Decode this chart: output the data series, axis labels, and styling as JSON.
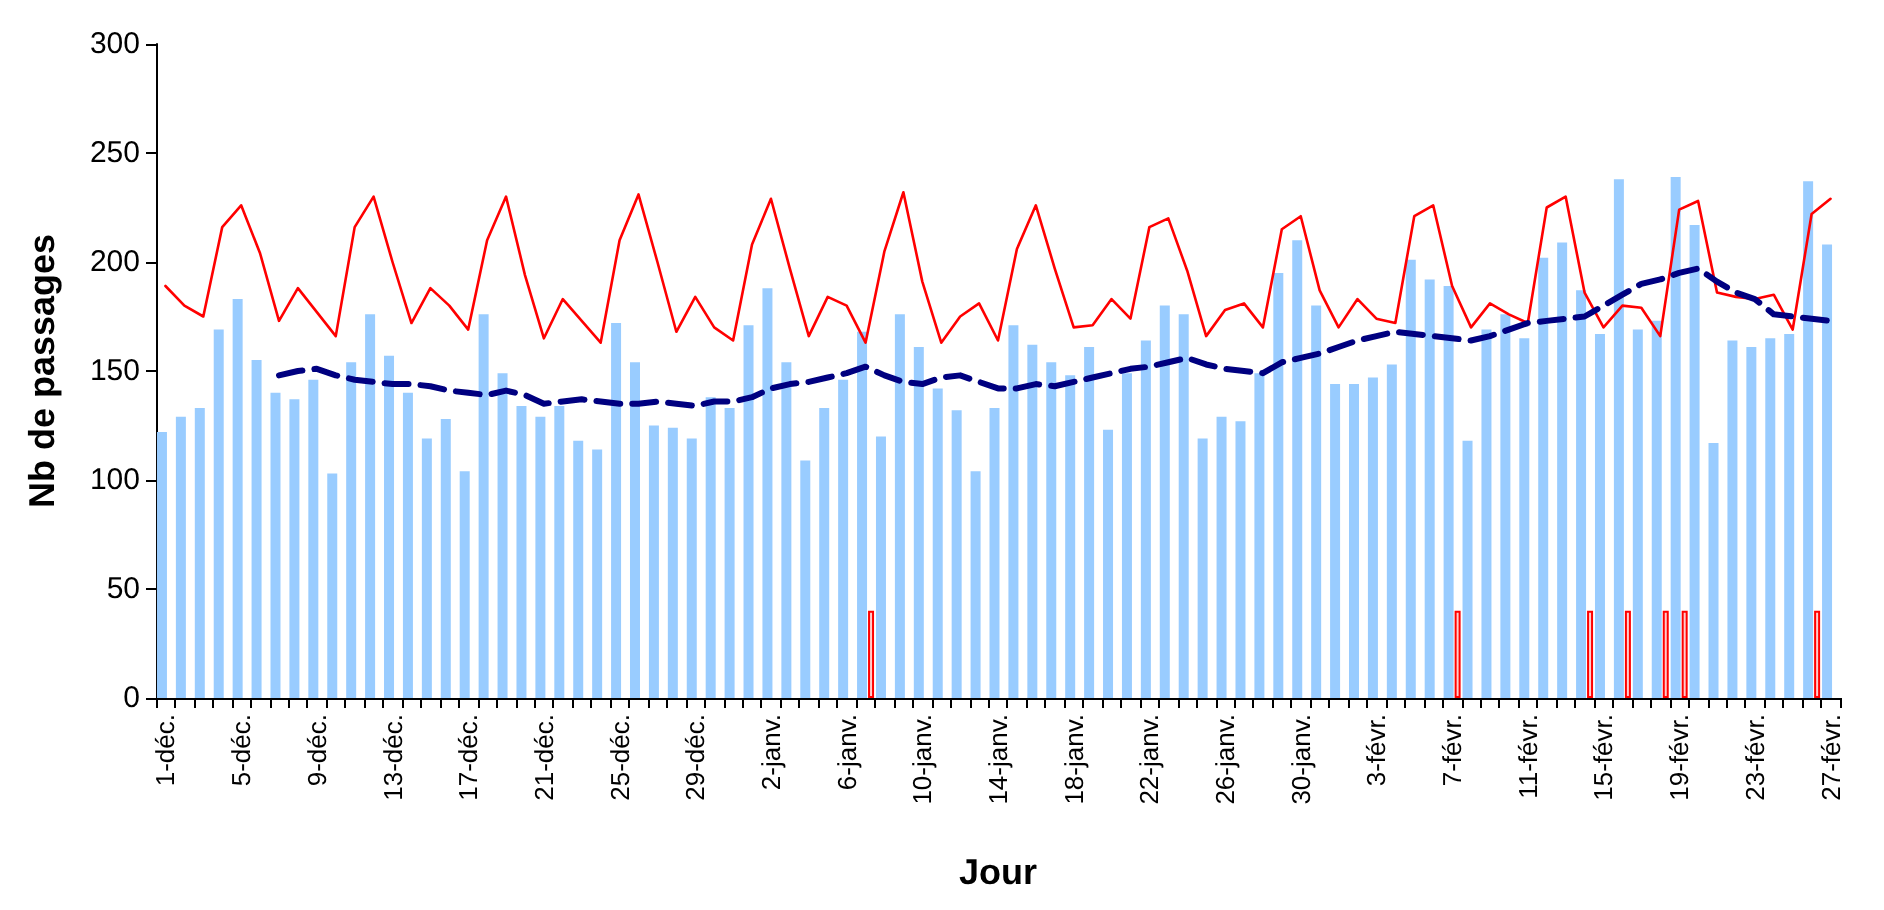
{
  "chart_data": {
    "type": "bar",
    "xlabel": "Jour",
    "ylabel": "Nb de passages",
    "categories": [
      "1-déc.",
      null,
      null,
      null,
      "5-déc.",
      null,
      null,
      null,
      "9-déc.",
      null,
      null,
      null,
      "13-déc.",
      null,
      null,
      null,
      "17-déc.",
      null,
      null,
      null,
      "21-déc.",
      null,
      null,
      null,
      "25-déc.",
      null,
      null,
      null,
      "29-déc.",
      null,
      null,
      null,
      "2-janv.",
      null,
      null,
      null,
      "6-janv.",
      null,
      null,
      null,
      "10-janv.",
      null,
      null,
      null,
      "14-janv.",
      null,
      null,
      null,
      "18-janv.",
      null,
      null,
      null,
      "22-janv.",
      null,
      null,
      null,
      "26-janv.",
      null,
      null,
      null,
      "30-janv.",
      null,
      null,
      null,
      "3-févr.",
      null,
      null,
      null,
      "7-févr.",
      null,
      null,
      null,
      "11-févr.",
      null,
      null,
      null,
      "15-févr.",
      null,
      null,
      null,
      "19-févr.",
      null,
      null,
      null,
      "23-févr.",
      null,
      null,
      null,
      "27-févr."
    ],
    "series": [
      {
        "color": "#99ccff",
        "values": [
          122,
          129,
          133,
          169,
          183,
          155,
          140,
          137,
          146,
          103,
          154,
          176,
          157,
          140,
          119,
          128,
          104,
          176,
          149,
          134,
          129,
          134,
          118,
          114,
          172,
          154,
          125,
          124,
          119,
          138,
          133,
          171,
          188,
          154,
          109,
          133,
          146,
          168,
          120,
          176,
          161,
          142,
          132,
          104,
          133,
          171,
          162,
          154,
          148,
          161,
          123,
          149,
          164,
          180,
          176,
          119,
          129,
          127,
          149,
          195,
          210,
          180,
          144,
          144,
          147,
          153,
          201,
          192,
          189,
          118,
          169,
          176,
          165,
          202,
          209,
          187,
          167,
          238,
          169,
          173,
          239,
          217,
          117,
          164,
          161,
          165,
          167,
          237,
          208
        ]
      },
      {
        "color": "#ff0000",
        "values": [
          null,
          null,
          null,
          null,
          null,
          null,
          null,
          null,
          null,
          null,
          null,
          null,
          null,
          null,
          null,
          null,
          null,
          null,
          null,
          null,
          null,
          null,
          null,
          null,
          null,
          null,
          null,
          null,
          null,
          null,
          null,
          null,
          null,
          null,
          null,
          null,
          null,
          40,
          null,
          null,
          null,
          null,
          null,
          null,
          null,
          null,
          null,
          null,
          null,
          null,
          null,
          null,
          null,
          null,
          null,
          null,
          null,
          null,
          null,
          null,
          null,
          null,
          null,
          null,
          null,
          null,
          null,
          null,
          40,
          null,
          null,
          null,
          null,
          null,
          null,
          40,
          null,
          40,
          null,
          40,
          40,
          null,
          null,
          null,
          null,
          null,
          null,
          40,
          null
        ]
      },
      {
        "type": "line",
        "color": "#ff0000",
        "line_style": "solid",
        "values": [
          189,
          180,
          175,
          216,
          226,
          204,
          173,
          188,
          177,
          166,
          216,
          230,
          200,
          172,
          188,
          180,
          169,
          210,
          230,
          194,
          165,
          183,
          173,
          163,
          210,
          231,
          200,
          168,
          184,
          170,
          164,
          208,
          229,
          197,
          166,
          184,
          180,
          163,
          205,
          232,
          191,
          163,
          175,
          181,
          164,
          206,
          226,
          197,
          170,
          171,
          183,
          174,
          216,
          220,
          196,
          166,
          178,
          181,
          170,
          215,
          221,
          187,
          170,
          183,
          174,
          172,
          221,
          226,
          189,
          170,
          181,
          176,
          172,
          225,
          230,
          186,
          170,
          180,
          179,
          166,
          224,
          228,
          186,
          184,
          183,
          185,
          169,
          222,
          229
        ]
      },
      {
        "type": "line",
        "color": "#000080",
        "line_style": "dashed",
        "values": [
          null,
          null,
          null,
          null,
          null,
          null,
          148,
          150,
          151,
          148,
          146,
          145,
          144,
          144,
          143,
          141,
          140,
          139,
          141,
          139,
          135,
          136,
          137,
          136,
          135,
          135,
          136,
          135,
          134,
          136,
          136,
          138,
          142,
          144,
          145,
          147,
          149,
          152,
          148,
          145,
          144,
          147,
          148,
          145,
          142,
          142,
          144,
          143,
          145,
          147,
          149,
          151,
          152,
          154,
          156,
          153,
          151,
          150,
          149,
          154,
          156,
          158,
          161,
          164,
          166,
          168,
          167,
          166,
          165,
          164,
          166,
          169,
          172,
          173,
          174,
          175,
          180,
          185,
          190,
          192,
          195,
          197,
          191,
          186,
          183,
          176,
          175,
          174,
          173
        ]
      }
    ],
    "ylim": [
      0,
      300
    ],
    "yticks": [
      0,
      50,
      100,
      150,
      200,
      250,
      300
    ],
    "grid": false,
    "marker": "none"
  }
}
